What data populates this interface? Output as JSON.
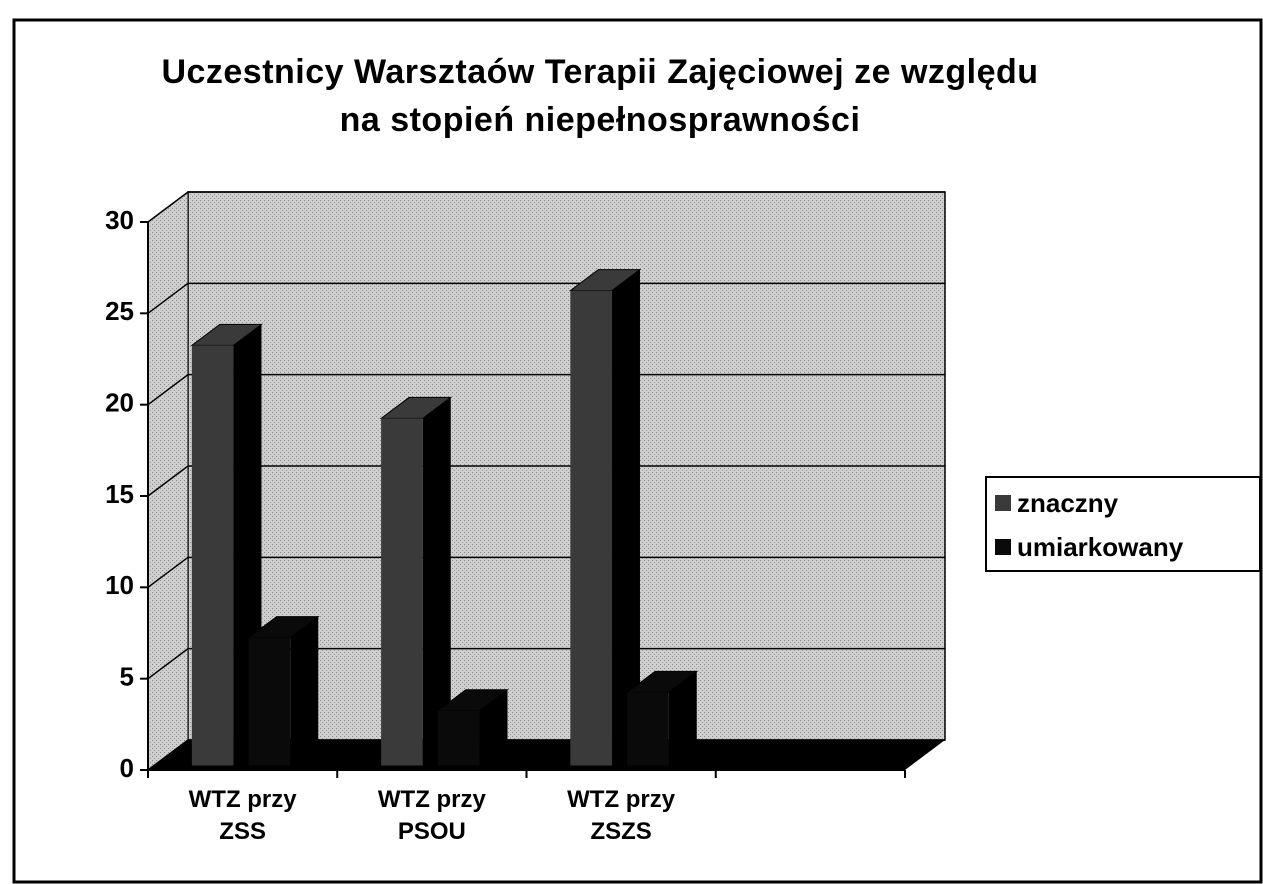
{
  "chart_data": {
    "type": "bar3d",
    "title": "Uczestnicy Warsztaów Terapii Zajęciowej ze względu na stopień niepełnosprawności",
    "categories": [
      "WTZ przy ZSS",
      "WTZ przy PSOU",
      "WTZ przy ZSZS",
      null
    ],
    "series": [
      {
        "name": "znaczny",
        "color": "#3a3a3a",
        "values": [
          23,
          19,
          26,
          null
        ]
      },
      {
        "name": "umiarkowany",
        "color": "#0a0a0a",
        "values": [
          7,
          3,
          4,
          null
        ]
      }
    ],
    "ylim": [
      0,
      30
    ],
    "yticks": [
      0,
      5,
      10,
      15,
      20,
      25,
      30
    ],
    "grid": true,
    "legend": "right"
  }
}
